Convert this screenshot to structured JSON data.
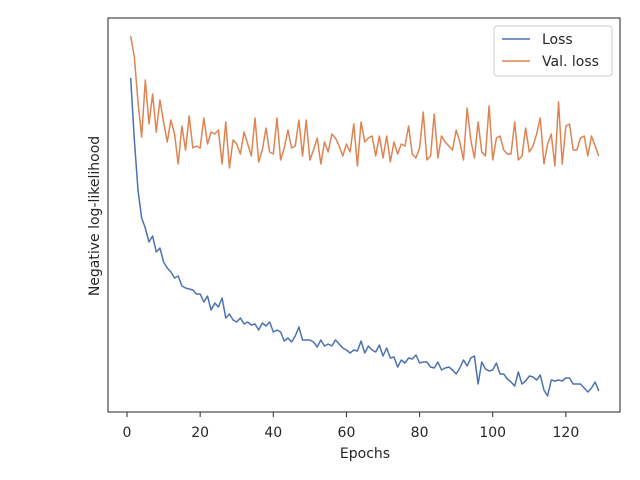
{
  "chart_data": {
    "type": "line",
    "xlabel": "Epochs",
    "ylabel": "Negative log-likelihood",
    "x": [
      1,
      2,
      3,
      4,
      5,
      6,
      7,
      8,
      9,
      10,
      11,
      12,
      13,
      14,
      15,
      16,
      17,
      18,
      19,
      20,
      21,
      22,
      23,
      24,
      25,
      26,
      27,
      28,
      29,
      30,
      31,
      32,
      33,
      34,
      35,
      36,
      37,
      38,
      39,
      40,
      41,
      42,
      43,
      44,
      45,
      46,
      47,
      48,
      49,
      50,
      51,
      52,
      53,
      54,
      55,
      56,
      57,
      58,
      59,
      60,
      61,
      62,
      63,
      64,
      65,
      66,
      67,
      68,
      69,
      70,
      71,
      72,
      73,
      74,
      75,
      76,
      77,
      78,
      79,
      80,
      81,
      82,
      83,
      84,
      85,
      86,
      87,
      88,
      89,
      90,
      91,
      92,
      93,
      94,
      95,
      96,
      97,
      98,
      99,
      100,
      101,
      102,
      103,
      104,
      105,
      106,
      107,
      108,
      109,
      110,
      111,
      112,
      113,
      114,
      115,
      116,
      117,
      118,
      119,
      120,
      121,
      122,
      123,
      124,
      125,
      126,
      127,
      128,
      129
    ],
    "series": [
      {
        "name": "Loss",
        "color": "#4c72b0",
        "values": [
          334,
          272,
          222,
          194,
          184,
          170,
          176,
          160,
          164,
          150,
          144,
          140,
          134,
          136,
          126,
          124,
          123,
          122,
          118,
          118,
          110,
          116,
          102,
          109,
          105,
          114,
          94,
          98,
          92,
          90,
          94,
          88,
          90,
          87,
          88,
          82,
          89,
          86,
          90,
          80,
          82,
          80,
          71,
          74,
          70,
          76,
          85,
          72,
          72,
          72,
          70,
          65,
          72,
          66,
          68,
          66,
          72,
          68,
          64,
          62,
          59,
          62,
          61,
          71,
          59,
          66,
          62,
          60,
          67,
          56,
          64,
          54,
          55,
          45,
          52,
          49,
          54,
          53,
          57,
          49,
          50,
          50,
          45,
          44,
          50,
          42,
          44,
          45,
          42,
          38,
          44,
          52,
          46,
          54,
          56,
          28,
          50,
          43,
          41,
          42,
          49,
          38,
          38,
          33,
          30,
          26,
          40,
          28,
          31,
          36,
          35,
          32,
          37,
          22,
          16,
          32,
          31,
          32,
          31,
          34,
          34,
          28,
          28,
          28,
          24,
          20,
          24,
          30,
          21
        ]
      },
      {
        "name": "Val. loss",
        "color": "#dd8452",
        "values": [
          376,
          355,
          310,
          275,
          332,
          288,
          318,
          280,
          312,
          290,
          270,
          292,
          278,
          248,
          286,
          262,
          296,
          264,
          266,
          264,
          294,
          268,
          280,
          278,
          282,
          248,
          290,
          244,
          272,
          268,
          258,
          280,
          268,
          256,
          294,
          250,
          262,
          284,
          260,
          258,
          294,
          252,
          264,
          282,
          264,
          266,
          292,
          256,
          292,
          252,
          262,
          274,
          248,
          270,
          260,
          278,
          274,
          266,
          256,
          268,
          260,
          288,
          246,
          290,
          270,
          274,
          276,
          256,
          276,
          254,
          276,
          250,
          270,
          258,
          268,
          266,
          286,
          258,
          254,
          264,
          300,
          252,
          256,
          298,
          254,
          276,
          270,
          266,
          262,
          282,
          270,
          252,
          304,
          272,
          254,
          290,
          260,
          256,
          306,
          252,
          274,
          276,
          262,
          258,
          258,
          290,
          252,
          256,
          284,
          260,
          266,
          278,
          294,
          248,
          268,
          278,
          246,
          310,
          248,
          286,
          288,
          262,
          262,
          274,
          276,
          256,
          276,
          266,
          256
        ]
      }
    ],
    "xlim": [
      -5.2,
      134.8
    ],
    "xticks": [
      0,
      20,
      40,
      60,
      80,
      100,
      120
    ],
    "ylim": [
      0,
      394
    ],
    "legend": "upper right"
  }
}
